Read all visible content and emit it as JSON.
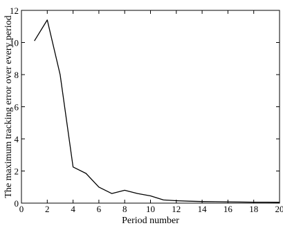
{
  "chart_data": {
    "type": "line",
    "title": "",
    "xlabel": "Period number",
    "ylabel": "The maximum tracking error over every period",
    "xlim": [
      0,
      20
    ],
    "ylim": [
      0,
      12
    ],
    "xticks": [
      0,
      2,
      4,
      6,
      8,
      10,
      12,
      14,
      16,
      18,
      20
    ],
    "yticks": [
      0,
      2,
      4,
      6,
      8,
      10,
      12
    ],
    "xtick_labels": [
      "0",
      "2",
      "4",
      "6",
      "8",
      "10",
      "12",
      "14",
      "16",
      "18",
      "20"
    ],
    "ytick_labels": [
      "0",
      "2",
      "4",
      "6",
      "8",
      "10",
      "12"
    ],
    "grid": false,
    "legend": "none",
    "line_color": "#000000",
    "series": [
      {
        "x": [
          1,
          2,
          3,
          4,
          5,
          6,
          7,
          8,
          9,
          10,
          11,
          12,
          13,
          14,
          15,
          16,
          17,
          18,
          19,
          20
        ],
        "values": [
          10.1,
          11.4,
          8.0,
          2.25,
          1.85,
          1.0,
          0.6,
          0.8,
          0.6,
          0.45,
          0.2,
          0.15,
          0.12,
          0.1,
          0.09,
          0.08,
          0.07,
          0.06,
          0.06,
          0.05
        ]
      }
    ]
  }
}
